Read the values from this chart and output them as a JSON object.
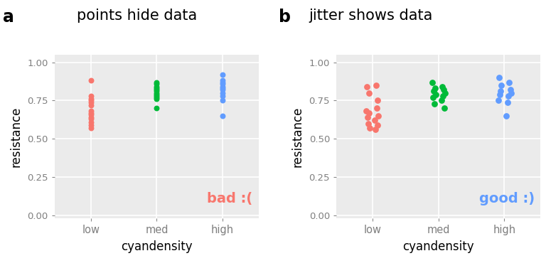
{
  "title_a": "points hide data",
  "title_b": "jitter shows data",
  "label_a": "a",
  "label_b": "b",
  "xlabel": "cyandensity",
  "ylabel": "resistance",
  "categories": [
    "low",
    "med",
    "high"
  ],
  "colors": [
    "#F8766D",
    "#00BA38",
    "#619CFF"
  ],
  "annotation_a": "bad :(",
  "annotation_b": "good :)",
  "annotation_color_a": "#F8766D",
  "annotation_color_b": "#619CFF",
  "ylim": [
    -0.02,
    1.05
  ],
  "yticks": [
    0.0,
    0.25,
    0.5,
    0.75,
    1.0
  ],
  "background_color": "#EBEBEB",
  "grid_color": "#FFFFFF",
  "low_values": [
    0.88,
    0.78,
    0.76,
    0.75,
    0.74,
    0.72,
    0.68,
    0.67,
    0.66,
    0.64,
    0.63,
    0.61,
    0.59,
    0.57
  ],
  "med_values": [
    0.87,
    0.86,
    0.84,
    0.83,
    0.82,
    0.81,
    0.8,
    0.79,
    0.78,
    0.77,
    0.76,
    0.7
  ],
  "high_values": [
    0.92,
    0.88,
    0.87,
    0.86,
    0.84,
    0.83,
    0.82,
    0.8,
    0.78,
    0.75,
    0.65
  ],
  "jitter_low_x": [
    -0.09,
    0.05,
    -0.05,
    0.08,
    -0.1,
    0.06,
    -0.06,
    0.09,
    -0.08,
    0.03,
    -0.07,
    0.07,
    -0.04,
    0.04
  ],
  "jitter_low_y": [
    0.84,
    0.85,
    0.8,
    0.75,
    0.68,
    0.7,
    0.67,
    0.65,
    0.64,
    0.62,
    0.6,
    0.59,
    0.57,
    0.56
  ],
  "jitter_med_x": [
    -0.09,
    0.06,
    -0.05,
    0.08,
    -0.07,
    0.1,
    -0.04,
    0.07,
    -0.08,
    0.05,
    -0.06,
    0.09
  ],
  "jitter_med_y": [
    0.87,
    0.84,
    0.83,
    0.82,
    0.81,
    0.8,
    0.79,
    0.78,
    0.77,
    0.75,
    0.73,
    0.7
  ],
  "jitter_high_x": [
    -0.08,
    0.07,
    -0.05,
    0.09,
    -0.06,
    0.1,
    -0.07,
    0.06,
    -0.09,
    0.05,
    0.03
  ],
  "jitter_high_y": [
    0.9,
    0.87,
    0.85,
    0.82,
    0.81,
    0.8,
    0.79,
    0.78,
    0.75,
    0.74,
    0.65
  ],
  "point_size": 22,
  "point_size_jitter": 28,
  "tick_color": "#888888",
  "tick_label_color": "#7F7F7F"
}
